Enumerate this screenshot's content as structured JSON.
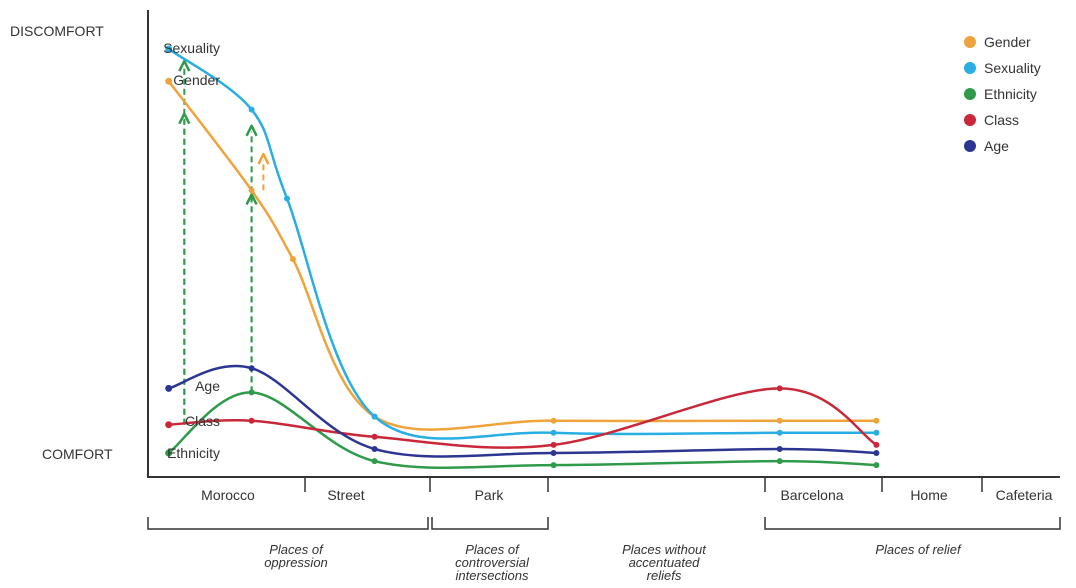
{
  "chart_data": {
    "type": "line",
    "y_axis": {
      "top_label": "DISCOMFORT",
      "bottom_label": "COMFORT",
      "ylim": [
        0,
        100
      ]
    },
    "categories": [
      "Morocco",
      "Street",
      "Park",
      "Barcelona",
      "Home",
      "Cafeteria"
    ],
    "groups": [
      {
        "label": "Places of oppression",
        "span": [
          "Morocco",
          "Street"
        ]
      },
      {
        "label": "Places of controversial intersections",
        "span": [
          "Park",
          "Park"
        ]
      },
      {
        "label": "Places without accentuated reliefs",
        "span": []
      },
      {
        "label": "Places of relief",
        "span": [
          "Barcelona",
          "Cafeteria"
        ]
      }
    ],
    "series": [
      {
        "name": "Gender",
        "color": "#f0a33a",
        "start_label": "Gender",
        "x": [
          0.62,
          1.2,
          1.55,
          2.2,
          3.2,
          3.9,
          4.55
        ],
        "values": [
          92,
          65,
          48,
          9,
          8,
          8,
          8
        ]
      },
      {
        "name": "Sexuality",
        "color": "#29aee3",
        "start_label": "Sexuality",
        "x": [
          0.62,
          1.2,
          1.5,
          2.2,
          3.2,
          3.9,
          4.55
        ],
        "values": [
          100,
          85,
          63,
          9,
          5,
          5,
          5
        ]
      },
      {
        "name": "Ethnicity",
        "color": "#2f9a4a",
        "start_label": "Ethnicity",
        "x": [
          0.62,
          1.2,
          2.2,
          3.2,
          3.9,
          4.55
        ],
        "values": [
          0,
          15,
          -2,
          -3,
          -2,
          -3
        ]
      },
      {
        "name": "Class",
        "color": "#c8283a",
        "start_label": "Class",
        "x": [
          0.62,
          1.2,
          2.2,
          3.2,
          3.9,
          4.55
        ],
        "values": [
          7,
          8,
          4,
          2,
          16,
          2
        ]
      },
      {
        "name": "Age",
        "color": "#2c3591",
        "start_label": "Age",
        "x": [
          0.62,
          1.2,
          2.2,
          3.2,
          3.9,
          4.55
        ],
        "values": [
          16,
          21,
          1,
          0,
          1,
          0
        ]
      }
    ],
    "arrows": [
      {
        "color": "#2f9a4a",
        "x": 0.72,
        "from": 7,
        "to": 97
      },
      {
        "color": "#2f9a4a",
        "x": 0.72,
        "from": 7,
        "to": 84
      },
      {
        "color": "#2f9a4a",
        "x": 1.2,
        "from": 15,
        "to": 81
      },
      {
        "color": "#2f9a4a",
        "x": 1.2,
        "from": 15,
        "to": 64
      },
      {
        "color": "#f0a33a",
        "x": 1.3,
        "from": 65,
        "to": 74
      }
    ],
    "legend": {
      "position": "top-right",
      "entries": [
        "Gender",
        "Sexuality",
        "Ethnicity",
        "Class",
        "Age"
      ]
    },
    "grid": false
  }
}
